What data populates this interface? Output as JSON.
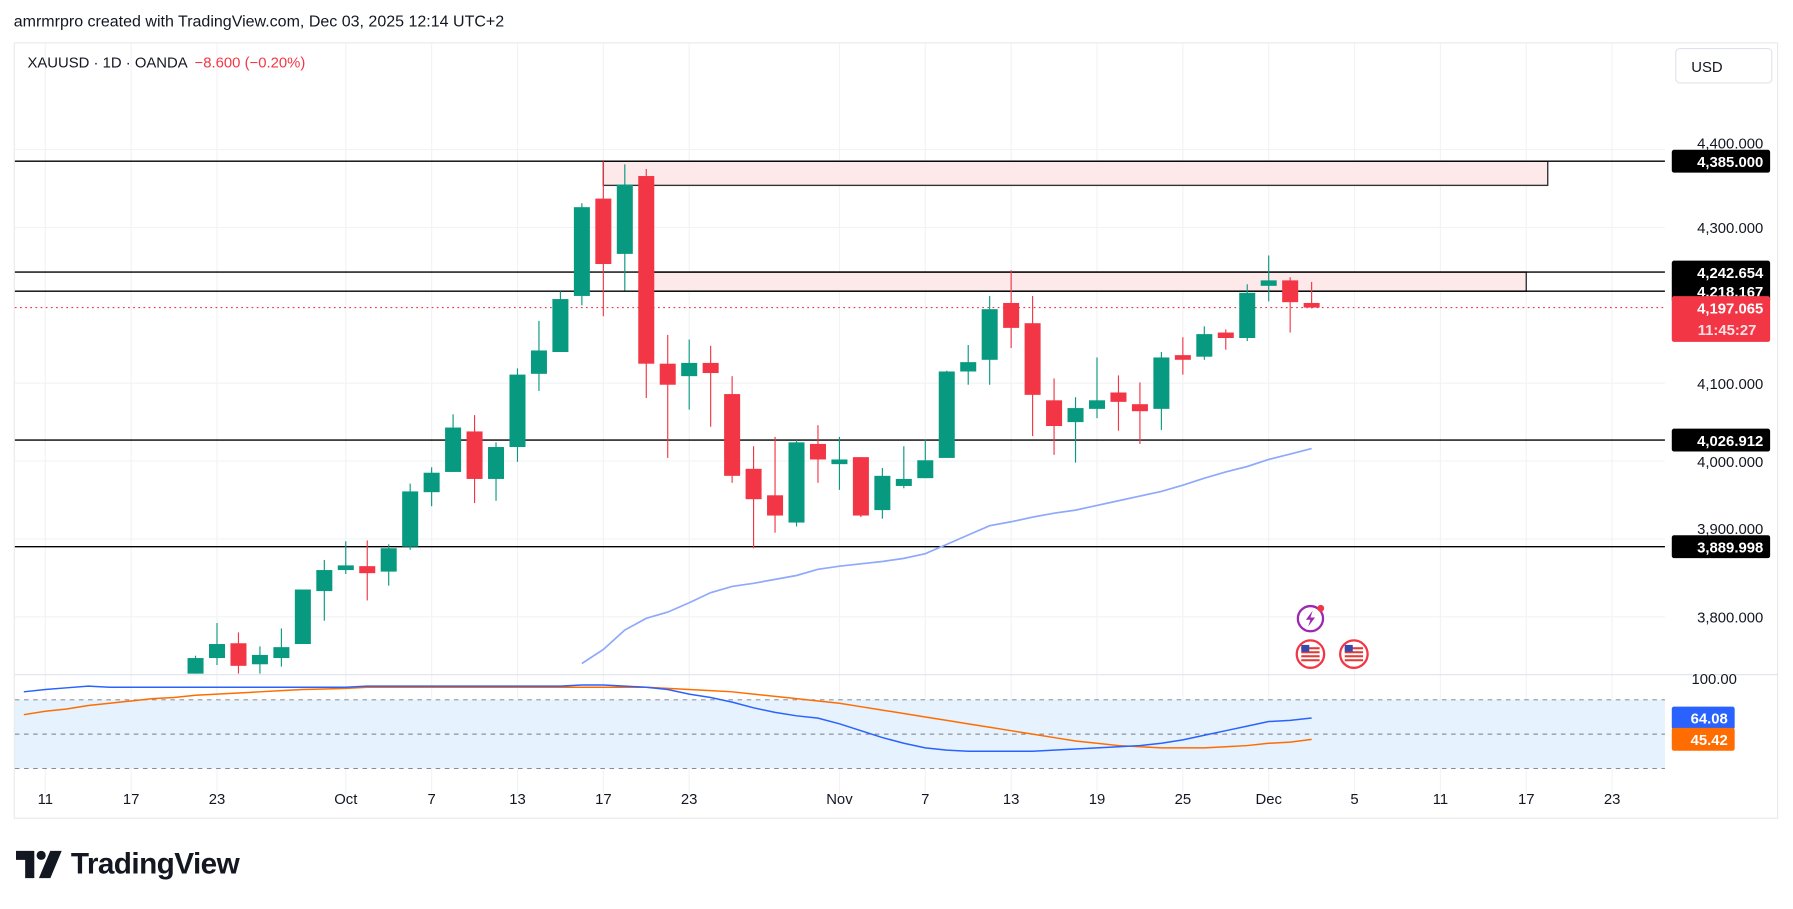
{
  "header": {
    "attribution": "amrmrpro created with TradingView.com, Dec 03, 2025 12:14 UTC+2"
  },
  "symbol_bar": {
    "symbol": "XAUUSD · 1D · OANDA",
    "change": "−8.600 (−0.20%)"
  },
  "currency_button": "USD",
  "brand": {
    "name": "TradingView"
  },
  "colors": {
    "up": "#089981",
    "down": "#f23645",
    "ma": "#8fa9fb",
    "osc_k": "#2962ff",
    "osc_d": "#ff6d00",
    "zone_fill": "#fde8ea"
  },
  "chart_data": {
    "type": "candlestick",
    "title": "XAUUSD 1D OANDA",
    "ylim": [
      3760,
      4420
    ],
    "price_ticks": [
      {
        "v": 3800,
        "label": "3,800.000"
      },
      {
        "v": 3900,
        "label": "3,900.000"
      },
      {
        "v": 4000,
        "label": "4,000.000"
      },
      {
        "v": 4100,
        "label": "4,100.000"
      },
      {
        "v": 4300,
        "label": "4,300.000"
      },
      {
        "v": 4400,
        "label": "4,400.000"
      }
    ],
    "time_ticks": [
      {
        "bar": -7,
        "label": "11"
      },
      {
        "bar": -3,
        "label": "17"
      },
      {
        "bar": 1,
        "label": "23"
      },
      {
        "bar": 7,
        "label": "Oct"
      },
      {
        "bar": 11,
        "label": "7"
      },
      {
        "bar": 15,
        "label": "13"
      },
      {
        "bar": 19,
        "label": "17"
      },
      {
        "bar": 23,
        "label": "23"
      },
      {
        "bar": 30,
        "label": "Nov"
      },
      {
        "bar": 34,
        "label": "7"
      },
      {
        "bar": 38,
        "label": "13"
      },
      {
        "bar": 42,
        "label": "19"
      },
      {
        "bar": 46,
        "label": "25"
      },
      {
        "bar": 50,
        "label": "Dec"
      },
      {
        "bar": 54,
        "label": "5"
      },
      {
        "bar": 58,
        "label": "11"
      },
      {
        "bar": 62,
        "label": "17"
      },
      {
        "bar": 66,
        "label": "23"
      }
    ],
    "candles": [
      [
        "Sep 22",
        3727,
        3750,
        3727,
        3747
      ],
      [
        "Sep 23",
        3747,
        3792,
        3738,
        3765
      ],
      [
        "Sep 24",
        3766,
        3780,
        3727,
        3737
      ],
      [
        "Sep 25",
        3739,
        3762,
        3727,
        3751
      ],
      [
        "Sep 26",
        3747,
        3785,
        3736,
        3761
      ],
      [
        "Sep 29",
        3765,
        3835,
        3765,
        3835
      ],
      [
        "Sep 30",
        3833,
        3873,
        3795,
        3860
      ],
      [
        "Oct 1",
        3860,
        3897,
        3855,
        3866
      ],
      [
        "Oct 2",
        3865,
        3898,
        3821,
        3856
      ],
      [
        "Oct 3",
        3858,
        3893,
        3840,
        3888
      ],
      [
        "Oct 6",
        3890,
        3971,
        3886,
        3961
      ],
      [
        "Oct 7",
        3960,
        3992,
        3942,
        3985
      ],
      [
        "Oct 8",
        3986,
        4060,
        3986,
        4043
      ],
      [
        "Oct 9",
        4038,
        4059,
        3946,
        3977
      ],
      [
        "Oct 10",
        3977,
        4024,
        3949,
        4018
      ],
      [
        "Oct 13",
        4018,
        4119,
        3999,
        4111
      ],
      [
        "Oct 14",
        4112,
        4180,
        4090,
        4142
      ],
      [
        "Oct 15",
        4140,
        4218,
        4140,
        4208
      ],
      [
        "Oct 16",
        4212,
        4331,
        4200,
        4326
      ],
      [
        "Oct 17",
        4337,
        4385,
        4186,
        4253
      ],
      [
        "Oct 20",
        4266,
        4381,
        4219,
        4355
      ],
      [
        "Oct 21",
        4366,
        4375,
        4081,
        4125
      ],
      [
        "Oct 22",
        4125,
        4162,
        4004,
        4098
      ],
      [
        "Oct 23",
        4109,
        4156,
        4066,
        4126
      ],
      [
        "Oct 24",
        4126,
        4148,
        4044,
        4113
      ],
      [
        "Oct 27",
        4086,
        4109,
        3972,
        3981
      ],
      [
        "Oct 28",
        3990,
        4019,
        3888,
        3951
      ],
      [
        "Oct 29",
        3956,
        4031,
        3908,
        3930
      ],
      [
        "Oct 30",
        3921,
        4027,
        3916,
        4024
      ],
      [
        "Oct 31",
        4022,
        4046,
        3972,
        4002
      ],
      [
        "Nov 3",
        3996,
        4031,
        3963,
        4002
      ],
      [
        "Nov 4",
        4005,
        4005,
        3928,
        3930
      ],
      [
        "Nov 5",
        3937,
        3991,
        3926,
        3981
      ],
      [
        "Nov 6",
        3968,
        4019,
        3965,
        3977
      ],
      [
        "Nov 7",
        3978,
        4028,
        3978,
        4001
      ],
      [
        "Nov 10",
        4004,
        4116,
        4004,
        4115
      ],
      [
        "Nov 11",
        4115,
        4149,
        4098,
        4127
      ],
      [
        "Nov 12",
        4130,
        4212,
        4098,
        4195
      ],
      [
        "Nov 13",
        4203,
        4245,
        4145,
        4171
      ],
      [
        "Nov 14",
        4177,
        4212,
        4032,
        4085
      ],
      [
        "Nov 17",
        4078,
        4106,
        4008,
        4045
      ],
      [
        "Nov 18",
        4050,
        4082,
        3998,
        4068
      ],
      [
        "Nov 19",
        4067,
        4133,
        4055,
        4078
      ],
      [
        "Nov 20",
        4088,
        4110,
        4039,
        4076
      ],
      [
        "Nov 21",
        4073,
        4101,
        4022,
        4064
      ],
      [
        "Nov 24",
        4067,
        4140,
        4040,
        4133
      ],
      [
        "Nov 25",
        4136,
        4159,
        4111,
        4130
      ],
      [
        "Nov 26",
        4134,
        4173,
        4130,
        4163
      ],
      [
        "Nov 27",
        4165,
        4169,
        4143,
        4158
      ],
      [
        "Nov 28",
        4158,
        4227,
        4154,
        4216
      ],
      [
        "Dec 1",
        4225,
        4264,
        4205,
        4232
      ],
      [
        "Dec 2",
        4232,
        4236,
        4165,
        4204
      ],
      [
        "Dec 3",
        4203,
        4230,
        4196,
        4197.065
      ]
    ],
    "moving_average": {
      "start_bar": 18,
      "values": [
        3740,
        3758,
        3783,
        3798,
        3806,
        3818,
        3831,
        3839,
        3843,
        3848,
        3853,
        3861,
        3865,
        3868,
        3871,
        3875,
        3881,
        3893,
        3905,
        3917,
        3922,
        3928,
        3933,
        3937,
        3943,
        3949,
        3955,
        3961,
        3969,
        3978,
        3986,
        3993,
        4002,
        4009,
        4016
      ]
    },
    "levels": [
      {
        "price": 4385.0,
        "label": "4,385.000"
      },
      {
        "price": 4242.654,
        "label": "4,242.654"
      },
      {
        "price": 4218.167,
        "label": "4,218.167"
      },
      {
        "price": 4026.912,
        "label": "4,026.912"
      },
      {
        "price": 3889.998,
        "label": "3,889.998"
      }
    ],
    "zones": [
      {
        "top": 4385.0,
        "bottom": 4354,
        "start_bar": 19,
        "end_bar": 63
      },
      {
        "top": 4242.654,
        "bottom": 4218.167,
        "start_bar": 21,
        "end_bar": 62
      }
    ],
    "last_price": {
      "price": 4197.065,
      "label": "4,197.065",
      "countdown": "11:45:27"
    },
    "oscillator": {
      "ylim": [
        12,
        100
      ],
      "top_label": "100.00",
      "band": [
        20,
        80
      ],
      "mid": 50,
      "start_bar": -8,
      "k": {
        "name": "K",
        "last_label": "64.08",
        "values": [
          87,
          89,
          90.5,
          92,
          91,
          91,
          91,
          91,
          91,
          91,
          91,
          91,
          91,
          91,
          91,
          91,
          92,
          92,
          92,
          92,
          92,
          92,
          92,
          92,
          92,
          92,
          93,
          93,
          92,
          91,
          89,
          85,
          82,
          78,
          73,
          69,
          66,
          64,
          59,
          53,
          47,
          42,
          38,
          36,
          35,
          35,
          35,
          35,
          36,
          37,
          38,
          39,
          40,
          42,
          45,
          49,
          53,
          57,
          61,
          62,
          64.08
        ]
      },
      "d": {
        "name": "D",
        "last_label": "45.42",
        "values": [
          67,
          70,
          72,
          75,
          77,
          79,
          81,
          82,
          84,
          85,
          86,
          87,
          88,
          89,
          89.5,
          90,
          91,
          91,
          91,
          91,
          91,
          91,
          91,
          91,
          91,
          91,
          91,
          91,
          91,
          91,
          90,
          89,
          88,
          87,
          85,
          83,
          81,
          79,
          77,
          74,
          71,
          68,
          65,
          62,
          59,
          56,
          53,
          50,
          47,
          44,
          42,
          40,
          39,
          38,
          38,
          38,
          39,
          40,
          42,
          43,
          45.42
        ]
      }
    },
    "event_icons": [
      "lightning-icon",
      "us-flag-icon",
      "us-flag-icon"
    ]
  }
}
